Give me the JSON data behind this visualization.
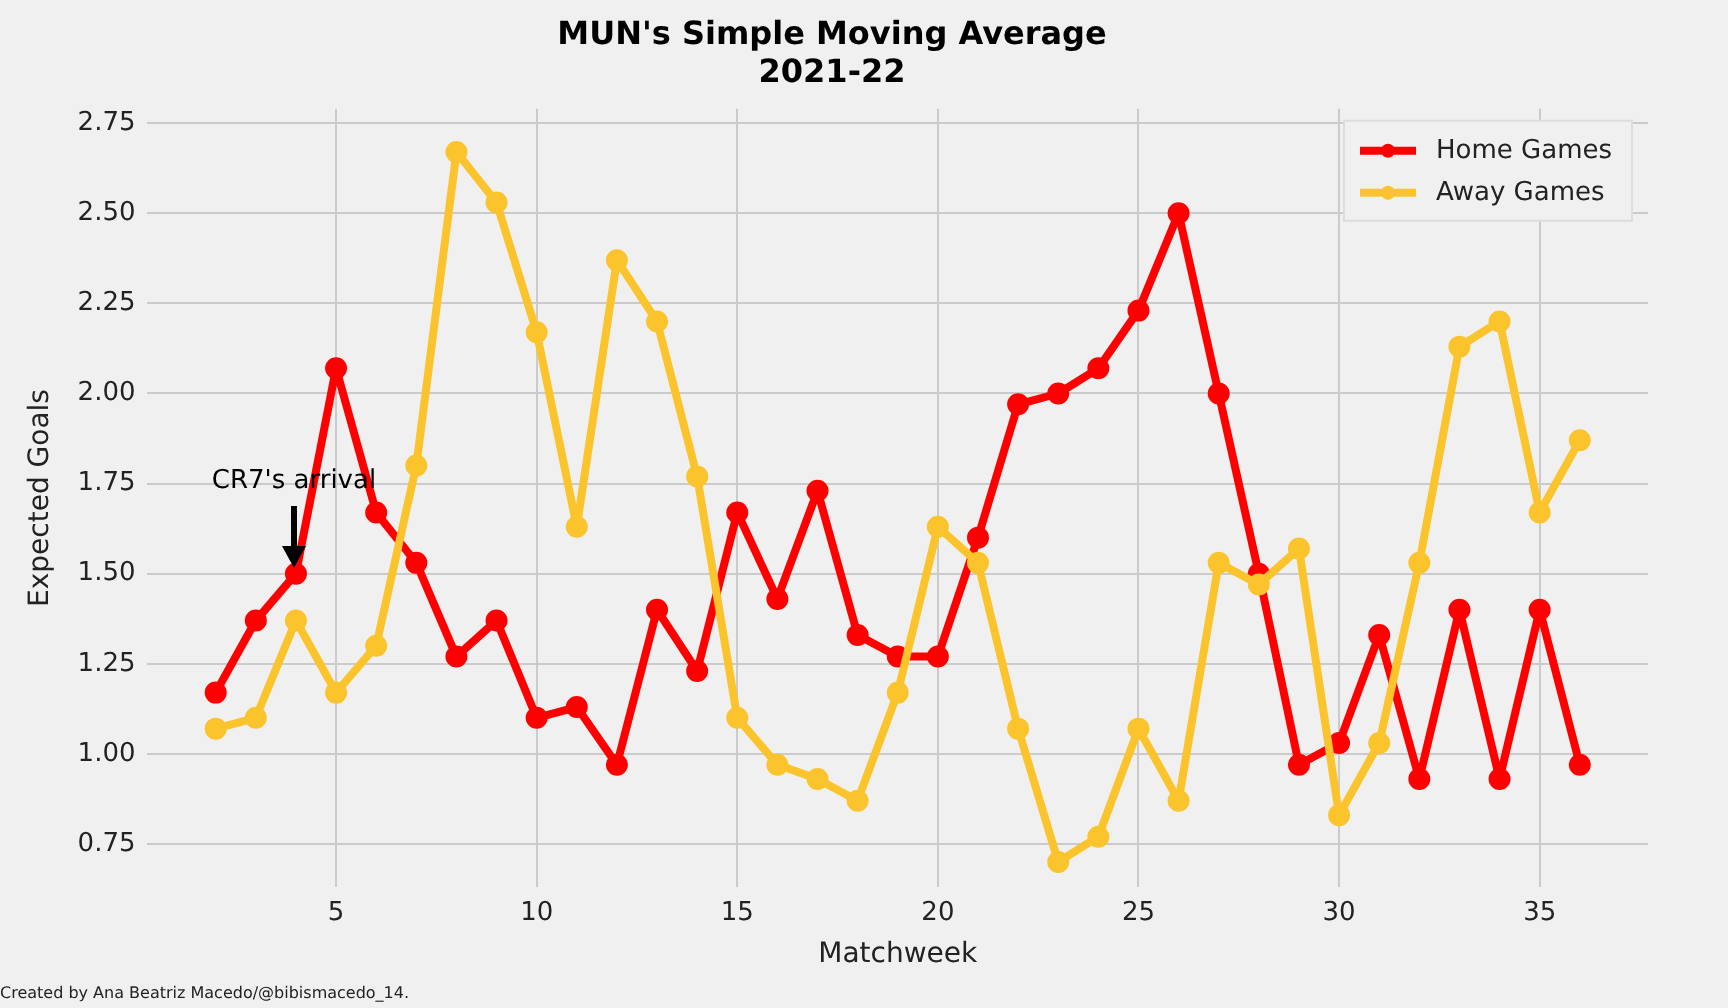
{
  "chart_data": {
    "type": "line",
    "title": "MUN's Simple Moving Average\n2021-22",
    "xlabel": "Matchweek",
    "ylabel": "Expected Goals",
    "x": [
      2,
      3,
      4,
      5,
      6,
      7,
      8,
      9,
      10,
      11,
      12,
      13,
      14,
      15,
      16,
      17,
      18,
      19,
      20,
      21,
      22,
      23,
      24,
      25,
      26,
      27,
      28,
      29,
      30,
      31,
      32,
      33,
      34,
      35,
      36
    ],
    "series": [
      {
        "name": "Home Games",
        "color": "#ff0000",
        "values": [
          1.17,
          1.37,
          1.5,
          2.07,
          1.67,
          1.53,
          1.27,
          1.37,
          1.1,
          1.13,
          0.97,
          1.4,
          1.23,
          1.67,
          1.43,
          1.73,
          1.33,
          1.27,
          1.27,
          1.6,
          1.97,
          2.0,
          2.07,
          2.23,
          2.5,
          2.0,
          1.5,
          0.97,
          1.03,
          1.33,
          0.93,
          1.4,
          0.93,
          1.4,
          0.97
        ]
      },
      {
        "name": "Away Games",
        "color": "#fcc42c",
        "values": [
          1.07,
          1.1,
          1.37,
          1.17,
          1.3,
          1.8,
          2.67,
          2.53,
          2.17,
          1.63,
          2.37,
          2.2,
          1.77,
          1.1,
          0.97,
          0.93,
          0.87,
          1.17,
          1.63,
          1.53,
          1.07,
          0.7,
          0.77,
          1.07,
          0.87,
          1.53,
          1.47,
          1.57,
          0.83,
          1.03,
          1.53,
          2.13,
          2.2,
          1.67,
          1.87
        ]
      }
    ],
    "xlim": [
      0.3,
      37.7
    ],
    "xticks": [
      5,
      10,
      15,
      20,
      25,
      30,
      35
    ],
    "ylim": [
      0.63,
      2.79
    ],
    "yticks": [
      0.75,
      {
        "value": 1.0,
        "label": "1.00"
      },
      1.25,
      {
        "value": 1.5,
        "label": "1.50"
      },
      1.75,
      {
        "value": 2.0,
        "label": "2.00"
      },
      2.25,
      {
        "value": 2.5,
        "label": "2.50"
      },
      2.75
    ],
    "annotations": [
      "CR7's arrival",
      "Created by Ana Beatriz Macedo/@bibismacedo_14."
    ],
    "grid": true,
    "legend": "top right",
    "marker": "circle",
    "line_style": "solid"
  }
}
